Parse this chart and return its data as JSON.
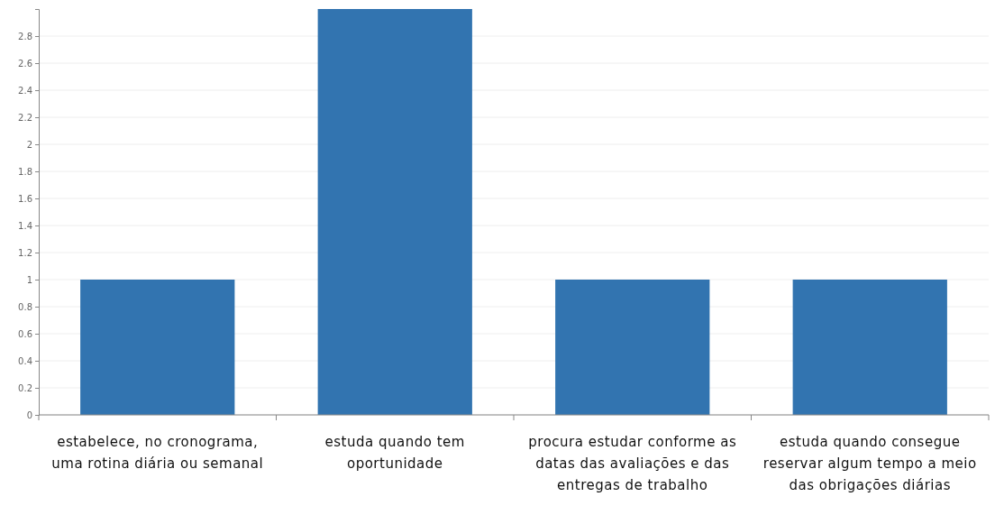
{
  "chart_data": {
    "type": "bar",
    "categories": [
      "estabelece, no cronograma, uma rotina diária ou semanal",
      "estuda quando tem oportunidade",
      "procura estudar conforme as datas das avaliações e das entregas de trabalho",
      "estuda quando consegue reservar algum tempo a meio das obrigações diárias"
    ],
    "values": [
      1,
      3,
      1,
      1
    ],
    "color": "#3274b0",
    "ylim": [
      0,
      3
    ],
    "yticks": [
      0,
      0.2,
      0.4,
      0.6,
      0.8,
      1,
      1.2,
      1.4,
      1.6,
      1.8,
      2,
      2.2,
      2.4,
      2.6,
      2.8
    ],
    "grid": "y"
  }
}
